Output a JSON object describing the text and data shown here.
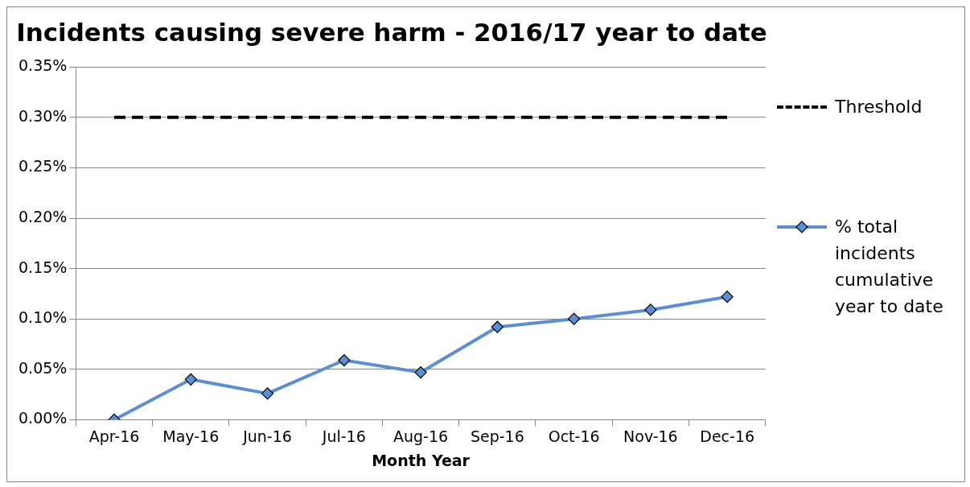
{
  "chart_data": {
    "type": "line",
    "title": "Incidents causing severe harm - 2016/17 year to date",
    "xlabel": "Month Year",
    "categories": [
      "Apr-16",
      "May-16",
      "Jun-16",
      "Jul-16",
      "Aug-16",
      "Sep-16",
      "Oct-16",
      "Nov-16",
      "Dec-16"
    ],
    "series": [
      {
        "name": "Threshold",
        "color": "#000000",
        "values": [
          0.3,
          0.3,
          0.3,
          0.3,
          0.3,
          0.3,
          0.3,
          0.3,
          0.3
        ],
        "line_style": "dashed",
        "marker": "none"
      },
      {
        "name": "% total incidents cumulative year to date",
        "color": "#5b8fd4",
        "values": [
          0,
          0.04,
          0.026,
          0.059,
          0.047,
          0.092,
          0.1,
          0.109,
          0.122
        ],
        "line_style": "solid",
        "marker": "diamond"
      }
    ],
    "ylim": [
      0,
      0.35
    ],
    "yticks": [
      {
        "value": 0,
        "label": "0.00%"
      },
      {
        "value": 0.05,
        "label": "0.05%"
      },
      {
        "value": 0.1,
        "label": "0.10%"
      },
      {
        "value": 0.15,
        "label": "0.15%"
      },
      {
        "value": 0.2,
        "label": "0.20%"
      },
      {
        "value": 0.25,
        "label": "0.25%"
      },
      {
        "value": 0.3,
        "label": "0.30%"
      },
      {
        "value": 0.35,
        "label": "0.35%"
      }
    ],
    "grid": "y",
    "legend": "right"
  }
}
